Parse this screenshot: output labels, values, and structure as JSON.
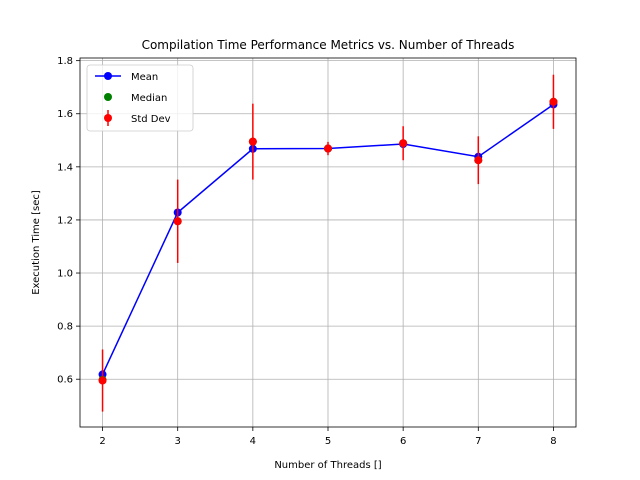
{
  "chart_data": {
    "type": "line",
    "title": "Compilation Time Performance Metrics vs. Number of Threads",
    "xlabel": "Number of Threads []",
    "ylabel": "Execution Time [sec]",
    "x": [
      2,
      3,
      4,
      5,
      6,
      7,
      8
    ],
    "xlim": [
      1.7,
      8.3
    ],
    "ylim": [
      0.42,
      1.81
    ],
    "xticks": [
      2,
      3,
      4,
      5,
      6,
      7,
      8
    ],
    "yticks": [
      0.6,
      0.8,
      1.0,
      1.2,
      1.4,
      1.6,
      1.8
    ],
    "grid": true,
    "legend_position": "top-left",
    "series": [
      {
        "name": "Mean",
        "kind": "line-marker",
        "color": "#0000ff",
        "values": [
          0.618,
          1.228,
          1.468,
          1.469,
          1.486,
          1.438,
          1.635
        ]
      },
      {
        "name": "Median",
        "kind": "marker",
        "color": "#008000",
        "values": [
          0.598,
          1.195,
          1.495,
          1.469,
          1.489,
          1.425,
          1.645
        ]
      },
      {
        "name": "Std Dev",
        "kind": "errorbar",
        "color": "#ff0000",
        "values": [
          0.595,
          1.195,
          1.495,
          1.469,
          1.489,
          1.425,
          1.645
        ],
        "errors": [
          0.117,
          0.157,
          0.143,
          0.025,
          0.064,
          0.09,
          0.102
        ]
      }
    ]
  }
}
